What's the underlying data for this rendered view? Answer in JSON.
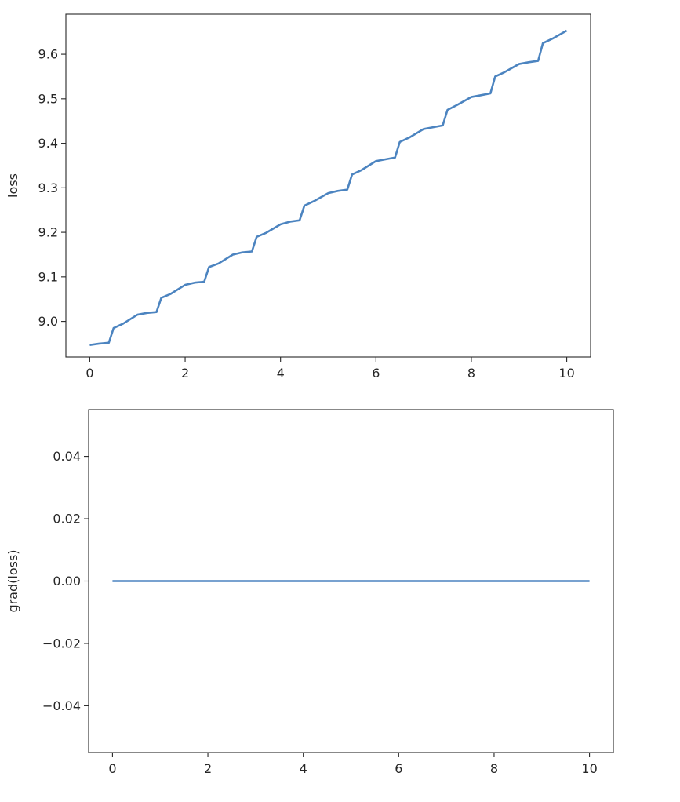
{
  "chart_data": [
    {
      "type": "line",
      "title": "",
      "xlabel": "",
      "ylabel": "loss",
      "xlim": [
        -0.5,
        10.5
      ],
      "ylim": [
        8.92,
        9.69
      ],
      "xticks": [
        0,
        2,
        4,
        6,
        8,
        10
      ],
      "xtick_labels": [
        "0",
        "2",
        "4",
        "6",
        "8",
        "10"
      ],
      "yticks": [
        9.0,
        9.1,
        9.2,
        9.3,
        9.4,
        9.5,
        9.6
      ],
      "ytick_labels": [
        "9.0",
        "9.1",
        "9.2",
        "9.3",
        "9.4",
        "9.5",
        "9.6"
      ],
      "grid": false,
      "color": "#4c84c0",
      "series": [
        {
          "x": [
            0,
            0.2,
            0.4,
            0.5,
            0.7,
            1.0,
            1.2,
            1.4,
            1.5,
            1.7,
            2.0,
            2.2,
            2.4,
            2.5,
            2.7,
            3.0,
            3.2,
            3.4,
            3.5,
            3.7,
            4.0,
            4.2,
            4.4,
            4.5,
            4.7,
            5.0,
            5.2,
            5.4,
            5.5,
            5.7,
            6.0,
            6.2,
            6.4,
            6.5,
            6.7,
            7.0,
            7.2,
            7.4,
            7.5,
            7.7,
            8.0,
            8.2,
            8.4,
            8.5,
            8.7,
            9.0,
            9.2,
            9.4,
            9.5,
            9.7,
            10.0
          ],
          "values": [
            8.947,
            8.95,
            8.952,
            8.985,
            8.995,
            9.015,
            9.019,
            9.021,
            9.053,
            9.062,
            9.082,
            9.087,
            9.089,
            9.122,
            9.13,
            9.15,
            9.155,
            9.157,
            9.19,
            9.199,
            9.218,
            9.224,
            9.227,
            9.26,
            9.27,
            9.288,
            9.293,
            9.296,
            9.33,
            9.34,
            9.36,
            9.364,
            9.368,
            9.403,
            9.413,
            9.432,
            9.436,
            9.44,
            9.475,
            9.486,
            9.504,
            9.508,
            9.512,
            9.55,
            9.56,
            9.578,
            9.582,
            9.585,
            9.625,
            9.635,
            9.653
          ]
        }
      ]
    },
    {
      "type": "line",
      "title": "",
      "xlabel": "",
      "ylabel": "grad(loss)",
      "xlim": [
        -0.5,
        10.5
      ],
      "ylim": [
        -0.055,
        0.055
      ],
      "xticks": [
        0,
        2,
        4,
        6,
        8,
        10
      ],
      "xtick_labels": [
        "0",
        "2",
        "4",
        "6",
        "8",
        "10"
      ],
      "yticks": [
        -0.04,
        -0.02,
        0.0,
        0.02,
        0.04
      ],
      "ytick_labels": [
        "−0.04",
        "−0.02",
        "0.00",
        "0.02",
        "0.04"
      ],
      "grid": false,
      "color": "#4c84c0",
      "series": [
        {
          "x": [
            0,
            10
          ],
          "values": [
            0,
            0
          ]
        }
      ]
    }
  ]
}
